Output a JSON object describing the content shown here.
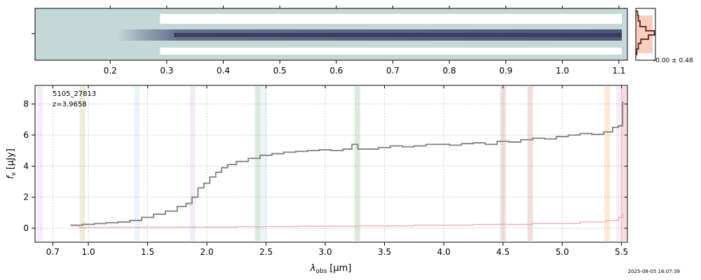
{
  "chart_data": [
    {
      "type": "heatmap",
      "panel": "2d-spectrum",
      "top_axis_tick_labels": [
        "0.2",
        "0.3",
        "0.4",
        "0.5",
        "0.6",
        "0.7",
        "0.8",
        "0.9",
        "1.0",
        "1.1"
      ],
      "top_axis_tick_values": [
        0.2,
        0.3,
        0.4,
        0.5,
        0.6,
        0.7,
        0.8,
        0.9,
        1.0,
        1.1
      ],
      "colormap": [
        "#c4d8d8",
        "#ffffff",
        "#3b3f64"
      ],
      "trace_row_center": "middle"
    },
    {
      "type": "histogram",
      "panel": "noise-histogram",
      "label": "-0.00 ± 0.48",
      "colors": {
        "hist": "#6b3428",
        "fill": "#f8c8b8"
      }
    },
    {
      "type": "line",
      "panel": "1d-spectrum",
      "annotations": [
        "5105_27813",
        "z=3.9658"
      ],
      "xlabel": "λ_obs [μm]",
      "xlabel_parts": {
        "symbol": "λ",
        "sub": "obs",
        "unit": "[μm]"
      },
      "ylabel": "f_ν [μJy]",
      "ylabel_parts": {
        "symbol": "f",
        "sub": "ν",
        "unit": "[μJy]"
      },
      "xlim": [
        0.55,
        5.55
      ],
      "ylim": [
        -0.9,
        9.2
      ],
      "x_ticks": [
        0.7,
        1.0,
        1.5,
        2.0,
        2.5,
        3.0,
        3.5,
        4.0,
        4.5,
        5.0,
        5.5
      ],
      "x_tick_labels": [
        "0.7",
        "1.0",
        "1.5",
        "2.0",
        "2.5",
        "3.0",
        "3.5",
        "4.0",
        "4.5",
        "5.0",
        "5.5"
      ],
      "y_ticks": [
        0,
        2,
        4,
        6,
        8
      ],
      "y_tick_labels": [
        "0",
        "2",
        "4",
        "6",
        "8"
      ],
      "grid": true,
      "series": [
        {
          "role": "flux",
          "color": "#808080",
          "x": [
            0.85,
            0.9,
            1.0,
            1.1,
            1.2,
            1.3,
            1.4,
            1.5,
            1.6,
            1.7,
            1.8,
            1.85,
            1.9,
            1.95,
            2.0,
            2.05,
            2.1,
            2.15,
            2.2,
            2.3,
            2.4,
            2.5,
            2.6,
            2.7,
            2.8,
            2.9,
            3.0,
            3.1,
            3.2,
            3.25,
            3.3,
            3.4,
            3.5,
            3.6,
            3.7,
            3.8,
            3.9,
            4.0,
            4.1,
            4.2,
            4.3,
            4.4,
            4.5,
            4.6,
            4.7,
            4.8,
            4.9,
            5.0,
            5.1,
            5.2,
            5.3,
            5.4,
            5.45,
            5.5,
            5.52
          ],
          "y": [
            0.2,
            0.2,
            0.25,
            0.3,
            0.35,
            0.4,
            0.5,
            0.7,
            0.9,
            1.1,
            1.4,
            1.6,
            2.0,
            2.6,
            2.9,
            3.3,
            3.6,
            3.9,
            4.1,
            4.3,
            4.5,
            4.7,
            4.8,
            4.9,
            4.95,
            5.0,
            5.05,
            5.0,
            5.1,
            5.4,
            5.1,
            5.1,
            5.2,
            5.3,
            5.25,
            5.3,
            5.4,
            5.4,
            5.35,
            5.45,
            5.5,
            5.4,
            5.6,
            5.55,
            5.7,
            5.8,
            5.75,
            5.9,
            6.0,
            6.1,
            6.05,
            6.2,
            6.5,
            6.6,
            8.1
          ]
        },
        {
          "role": "error",
          "color": "#f4a7a0",
          "x": [
            0.85,
            1.0,
            1.5,
            2.0,
            2.5,
            3.0,
            3.5,
            4.0,
            4.5,
            5.0,
            5.3,
            5.45,
            5.5,
            5.52
          ],
          "y": [
            0.15,
            0.05,
            0.06,
            0.07,
            0.1,
            0.13,
            0.15,
            0.2,
            0.25,
            0.3,
            0.4,
            0.5,
            0.7,
            0.9
          ]
        }
      ],
      "line_bands": [
        {
          "x": 0.59,
          "color": "#e7a8dc"
        },
        {
          "x": 0.95,
          "color": "#b9a45a"
        },
        {
          "x": 1.41,
          "color": "#9ed2f0"
        },
        {
          "x": 1.88,
          "color": "#c8a6dc"
        },
        {
          "x": 2.43,
          "color": "#5aa55a"
        },
        {
          "x": 2.48,
          "color": "#9ed2f0"
        },
        {
          "x": 3.27,
          "color": "#5aa55a"
        },
        {
          "x": 4.5,
          "color": "#b57060"
        },
        {
          "x": 4.73,
          "color": "#b57060"
        },
        {
          "x": 5.38,
          "color": "#f0a050"
        },
        {
          "x": 5.48,
          "color": "#e7a8dc"
        },
        {
          "x": 5.52,
          "color": "#e05060"
        }
      ]
    }
  ],
  "timestamp": "2025-08-05 16:07:39"
}
